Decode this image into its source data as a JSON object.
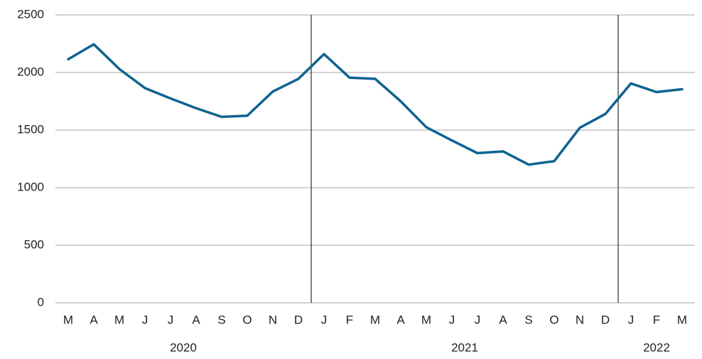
{
  "chart_data": {
    "type": "line",
    "categories": [
      "M",
      "A",
      "M",
      "J",
      "J",
      "A",
      "S",
      "O",
      "N",
      "D",
      "J",
      "F",
      "M",
      "A",
      "M",
      "J",
      "J",
      "A",
      "S",
      "O",
      "N",
      "D",
      "J",
      "F",
      "M"
    ],
    "x_groups": [
      {
        "label": "2020",
        "count": 10
      },
      {
        "label": "2021",
        "count": 12
      },
      {
        "label": "2022",
        "count": 3
      }
    ],
    "values": [
      2115,
      2245,
      2030,
      1865,
      1775,
      1690,
      1615,
      1625,
      1835,
      1945,
      2160,
      1955,
      1945,
      1750,
      1525,
      1410,
      1300,
      1315,
      1200,
      1230,
      1520,
      1640,
      1905,
      1830,
      1855
    ],
    "color": "#0f6391",
    "ylim": [
      0,
      2500
    ],
    "yticks": [
      0,
      500,
      1000,
      1500,
      2000,
      2500
    ],
    "grid": true
  }
}
